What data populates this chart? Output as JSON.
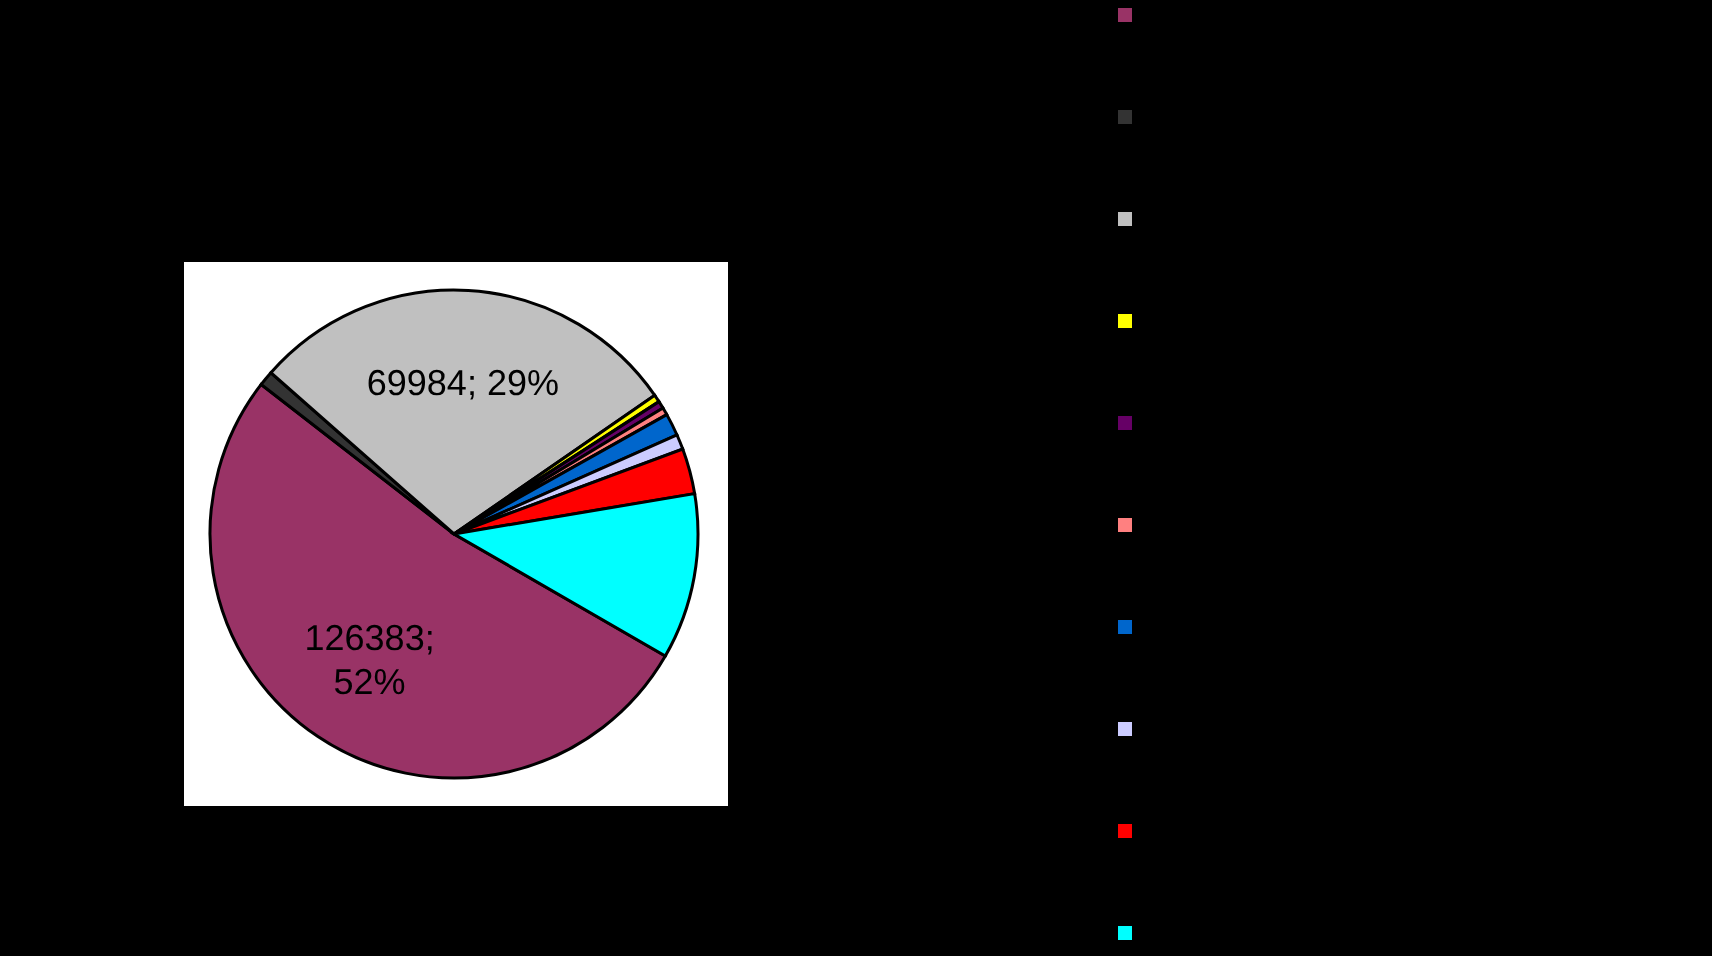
{
  "chart_data": {
    "type": "pie",
    "categories": [
      null,
      null,
      null,
      null,
      null,
      null,
      null,
      null,
      null,
      null
    ],
    "values": [
      126383,
      2400,
      69984,
      1200,
      1200,
      1200,
      3600,
      2400,
      7300,
      26600
    ],
    "colors": [
      "#993366",
      "#333333",
      "#c0c0c0",
      "#ffff00",
      "#660066",
      "#ff8080",
      "#0066cc",
      "#ccccff",
      "#ff0000",
      "#00ffff"
    ],
    "value_labels": [
      "126383;\n52%",
      null,
      "69984; 29%",
      null,
      null,
      null,
      null,
      null,
      null,
      null
    ]
  }
}
